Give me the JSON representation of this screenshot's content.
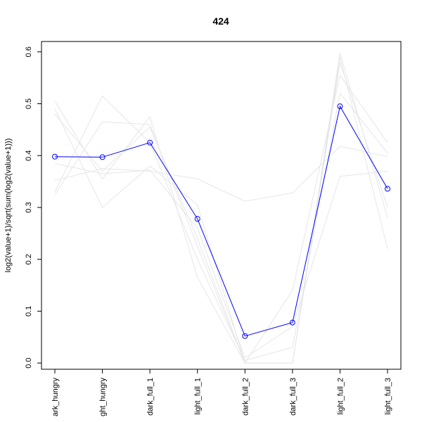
{
  "chart_data": {
    "type": "line",
    "title": "424",
    "ylabel": "log2(value+1)/sqrt(sum(log2(value+1)))",
    "xlabel": "",
    "categories": [
      "dark_hungry",
      "light_hungry",
      "dark_full_1",
      "light_full_1",
      "dark_full_2",
      "dark_full_3",
      "light_full_2",
      "light_full_3"
    ],
    "xtick_labels": [
      "ark_hungry",
      "ght_hungry",
      "dark_full_1",
      "light_full_1",
      "dark_full_2",
      "dark_full_3",
      "light_full_2",
      "light_full_3"
    ],
    "ylim": [
      -0.012,
      0.62
    ],
    "yticks": [
      "0.0",
      "0.1",
      "0.2",
      "0.3",
      "0.4",
      "0.5",
      "0.6"
    ],
    "grid": false,
    "highlight_color": "#0000ff",
    "background_color": "#e6e6e6",
    "highlight": {
      "values": [
        0.398,
        0.397,
        0.425,
        0.278,
        0.052,
        0.078,
        0.495,
        0.336
      ]
    },
    "background_series": [
      {
        "values": [
          0.505,
          0.355,
          0.475,
          0.165,
          0.0,
          0.0,
          0.598,
          0.28
        ]
      },
      {
        "values": [
          0.49,
          0.3,
          0.38,
          0.305,
          0.0,
          0.0,
          0.59,
          0.22
        ]
      },
      {
        "values": [
          0.325,
          0.465,
          0.46,
          0.225,
          0.0,
          0.14,
          0.555,
          0.425
        ]
      },
      {
        "values": [
          0.352,
          0.375,
          0.37,
          0.355,
          0.312,
          0.328,
          0.418,
          0.398
        ]
      },
      {
        "values": [
          0.385,
          0.365,
          0.372,
          0.26,
          0.01,
          0.07,
          0.36,
          0.37
        ]
      },
      {
        "values": [
          0.33,
          0.515,
          0.425,
          0.2,
          0.005,
          0.03,
          0.52,
          0.405
        ]
      },
      {
        "values": [
          0.48,
          0.37,
          0.455,
          0.24,
          0.0,
          0.0,
          0.58,
          0.3
        ]
      }
    ]
  }
}
